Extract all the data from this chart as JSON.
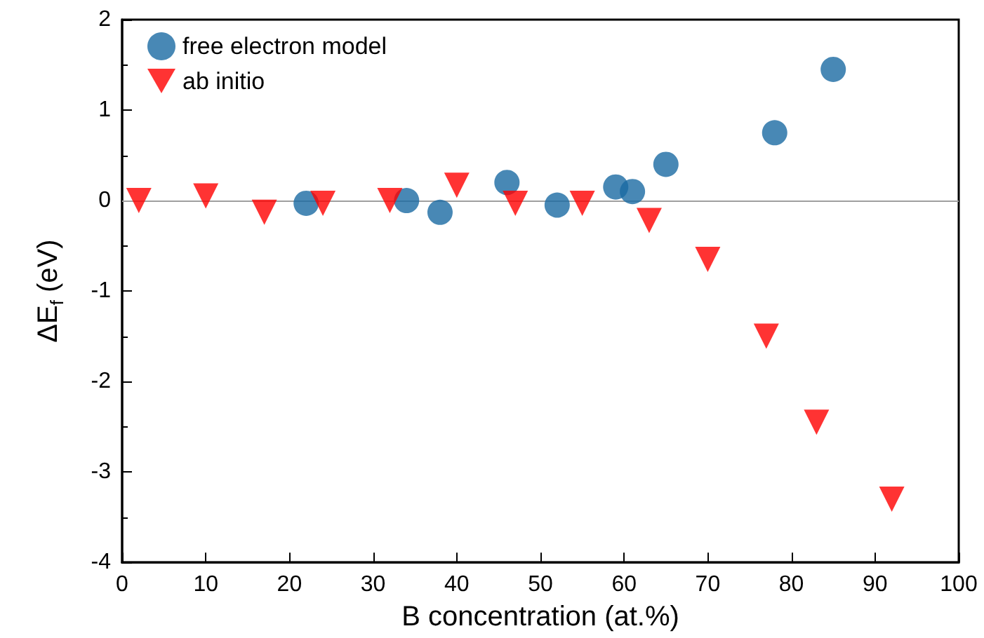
{
  "chart_data": {
    "type": "scatter",
    "xlabel": "B concentration (at.%)",
    "ylabel": "ΔE$_{f}$ (eV)",
    "xlim": [
      0,
      100
    ],
    "xticks": [
      0,
      10,
      20,
      30,
      40,
      50,
      60,
      70,
      80,
      90,
      100
    ],
    "ylim": [
      -4,
      2
    ],
    "yticks": [
      -4,
      -3,
      -2,
      -1,
      0,
      1,
      2
    ],
    "grid": false,
    "legend": "top left",
    "ref_lines": [
      {
        "axis": "y",
        "value": 0,
        "color": "#a0a0a0"
      }
    ],
    "series": [
      {
        "name": "free electron model",
        "color": "#1a6aa3",
        "marker": "circle",
        "x": [
          22,
          34,
          38,
          46,
          52,
          59,
          61,
          65,
          78,
          85
        ],
        "values": [
          -0.03,
          0,
          -0.13,
          0.2,
          -0.05,
          0.15,
          0.1,
          0.4,
          0.75,
          1.45
        ]
      },
      {
        "name": "ab initio",
        "color": "#ff0000",
        "marker": "triangle",
        "x": [
          2,
          10,
          17,
          24,
          32,
          40,
          47,
          55,
          63,
          70,
          77,
          83,
          92
        ],
        "values": [
          0,
          0.05,
          -0.13,
          -0.03,
          0,
          0.17,
          -0.03,
          -0.03,
          -0.22,
          -0.65,
          -1.5,
          -2.45,
          -3.3
        ]
      }
    ]
  }
}
